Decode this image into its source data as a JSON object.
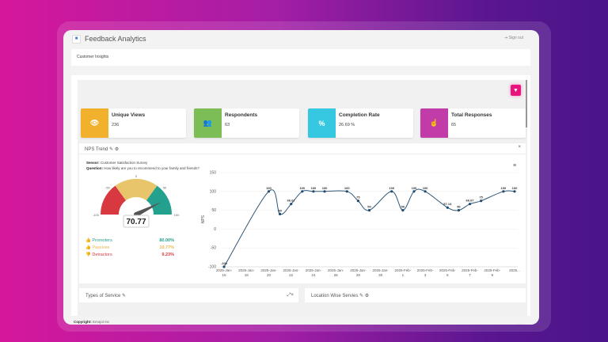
{
  "header": {
    "title": "Feedback Analytics",
    "sign_out": "Sign out",
    "menu_icon": "menu-icon"
  },
  "breadcrumb": "Customer Insights",
  "colors": {
    "accent": "#e8157e",
    "views": "#f2b12d",
    "respondents": "#7dbd55",
    "completion": "#36c8e0",
    "responses": "#c13ca9"
  },
  "cards": [
    {
      "label": "Unique Views",
      "value": "236",
      "icon": "eye-icon",
      "glyph": "👁"
    },
    {
      "label": "Respondents",
      "value": "63",
      "icon": "users-icon",
      "glyph": "👥"
    },
    {
      "label": "Completion Rate",
      "value": "26.69 %",
      "icon": "percent-icon",
      "glyph": "%"
    },
    {
      "label": "Total Responses",
      "value": "65",
      "icon": "hand-pointer-icon",
      "glyph": "☝"
    }
  ],
  "nps": {
    "title": "NPS Trend",
    "close": "×",
    "sensor_label": "Sensor:",
    "sensor": "Customer Satisfaction Survey",
    "question_label": "Question:",
    "question": "How likely are you to recommend to your family and friends?",
    "gauge": {
      "value": 70.77,
      "display": "70.77",
      "min": -100,
      "max": 100,
      "ticks": [
        "-100",
        "-50",
        "0",
        "50",
        "100"
      ]
    },
    "legend": [
      {
        "label": "Promoters",
        "value": "80.00%",
        "color": "#23a08e"
      },
      {
        "label": "Passives",
        "value": "10.77%",
        "color": "#e8b74a"
      },
      {
        "label": "Detractors",
        "value": "9.23%",
        "color": "#d8383f"
      }
    ]
  },
  "chart_data": {
    "type": "line",
    "ylabel": "NPS",
    "ylim": [
      -100,
      150
    ],
    "yticks": [
      150,
      100,
      50,
      0,
      -50,
      -100
    ],
    "xticks": [
      [
        "2025-Jan-",
        "16"
      ],
      [
        "2025-Jan-",
        "18"
      ],
      [
        "2025-Jan-",
        "20"
      ],
      [
        "2025-Jan-",
        "22"
      ],
      [
        "2025-Jan-",
        "24"
      ],
      [
        "2025-Jan-",
        "26"
      ],
      [
        "2025-Jan-",
        "28"
      ],
      [
        "2025-Jan-",
        "30"
      ],
      [
        "2025-Feb-",
        "1"
      ],
      [
        "2025-Feb-",
        "3"
      ],
      [
        "2025-Feb-",
        "5"
      ],
      [
        "2025-Feb-",
        "7"
      ],
      [
        "2025-Feb-",
        "9"
      ],
      [
        "2025...",
        ""
      ]
    ],
    "x_day_offset": [
      0,
      4,
      5,
      6,
      7,
      8,
      9,
      11,
      12,
      13,
      15,
      16,
      17,
      18,
      20,
      21,
      22,
      23,
      25,
      26
    ],
    "values": [
      -100,
      100,
      40,
      66.67,
      100,
      100,
      100,
      100,
      75,
      50,
      100,
      50,
      100,
      100,
      57.14,
      50,
      66.67,
      75,
      100,
      100
    ],
    "labels": [
      "-100",
      "100",
      "40",
      "66.67",
      "100",
      "100",
      "100",
      "100",
      "75",
      "50",
      "100",
      "50",
      "100",
      "100",
      "57.14",
      "50",
      "66.67",
      "75",
      "100",
      "100"
    ]
  },
  "panels": [
    {
      "title": "Types of Service"
    },
    {
      "title": "Location Wise Servies"
    }
  ],
  "fab": "+",
  "footer": {
    "label": "Copyright:",
    "company": "Emojot Inc"
  }
}
